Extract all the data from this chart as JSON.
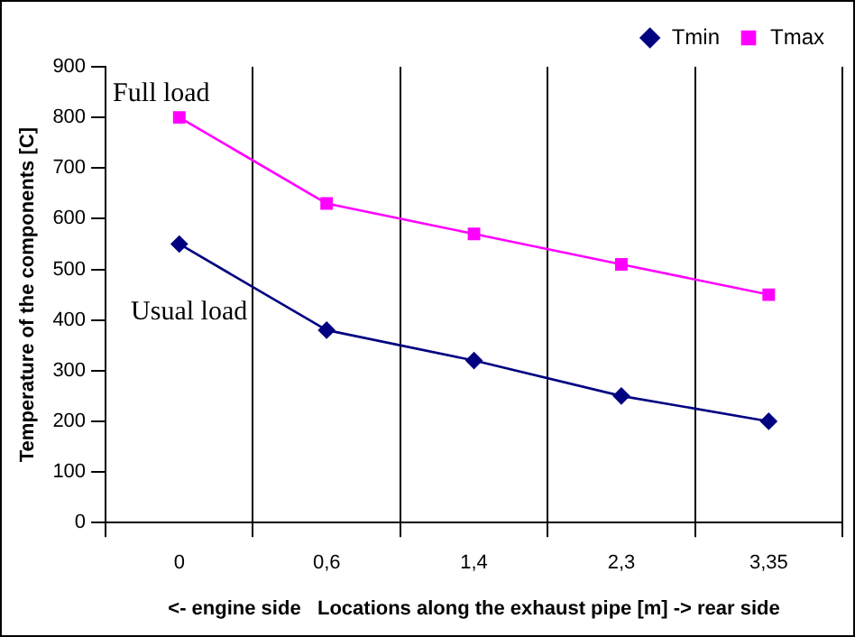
{
  "chart_data": {
    "type": "line",
    "xlabel": "<- engine side   Locations along the exhaust pipe [m] -> rear side",
    "ylabel": "Temperature of the components [C]",
    "categories": [
      "0",
      "0,6",
      "1,4",
      "2,3",
      "3,35"
    ],
    "series": [
      {
        "name": "Tmin",
        "color": "#000080",
        "values": [
          550,
          380,
          320,
          250,
          200
        ],
        "marker": "diamond"
      },
      {
        "name": "Tmax",
        "color": "#ff00ff",
        "values": [
          800,
          630,
          570,
          510,
          450
        ],
        "marker": "square"
      }
    ],
    "ylim": [
      0,
      900
    ],
    "yticks": [
      0,
      100,
      200,
      300,
      400,
      500,
      600,
      700,
      800,
      900
    ],
    "grid": "x",
    "legend": "top right",
    "line_style": "solid",
    "annotations": [
      "Full load",
      "Usual load"
    ]
  }
}
